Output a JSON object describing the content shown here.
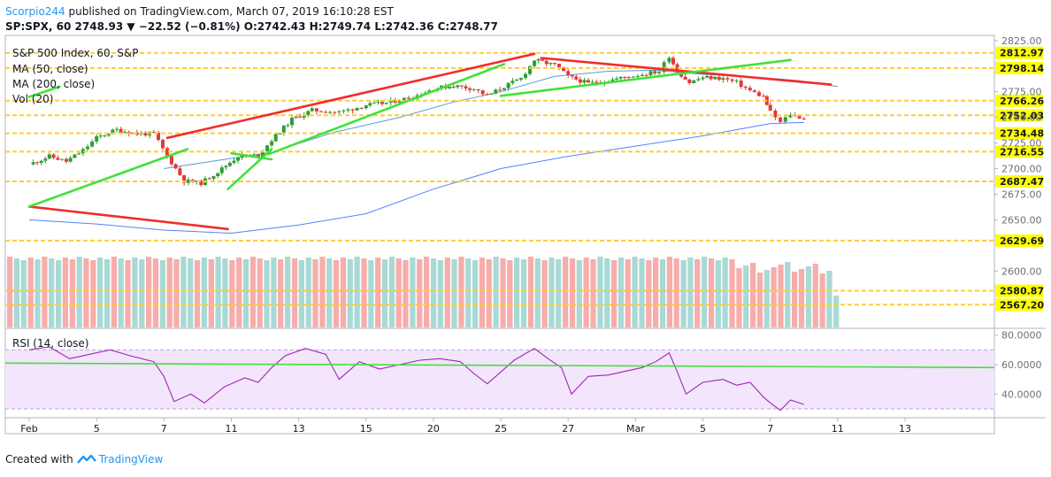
{
  "header": {
    "author": "Scorpio244",
    "published_text": " published on TradingView.com, March 07, 2019 16:10:28 EST",
    "symbol_line_prefix": "SP:SPX, 60  2748.93 ",
    "change_arrow": "▼",
    "symbol_line_suffix": " −22.52 (−0.81%) O:2742.43 H:2749.74 L:2742.36 C:2748.77"
  },
  "legend": {
    "title": "S&P 500 Index, 60, S&P",
    "ma50": "MA (50, close)",
    "ma200": "MA (200, close)",
    "vol": "Vol (20)",
    "rsi": "RSI (14, close)"
  },
  "footer": {
    "created_with": "Created with",
    "brand": "TradingView"
  },
  "colors": {
    "bull": "#26a69a",
    "bear": "#ef5350",
    "trend_red": "#f02d2d",
    "trend_green": "#43e13a",
    "level_line": "#ffcc33",
    "level_label_bg": "#ffff00",
    "ma50": "#5b9bd5",
    "ma200": "#2962ff",
    "rsi_line": "#9c27b0",
    "rsi_band": "#f3e5fb"
  },
  "chart_data": {
    "type": "candlestick",
    "instrument": "SP:SPX",
    "interval": "60",
    "price_axis": {
      "ylim": [
        2545,
        2830
      ],
      "ticks": [
        "2825.00",
        "2775.00",
        "2750.00",
        "2725.00",
        "2700.00",
        "2675.00",
        "2650.00",
        "2600.00"
      ],
      "tick_values": [
        2825,
        2775,
        2750,
        2725,
        2700,
        2675,
        2650,
        2600
      ]
    },
    "x_axis": {
      "ticks": [
        "Feb",
        "5",
        "7",
        "11",
        "13",
        "15",
        "20",
        "25",
        "27",
        "Mar",
        "5",
        "7",
        "11",
        "13"
      ],
      "tick_x_index": [
        0,
        1,
        2,
        3,
        4,
        5,
        6,
        7,
        8,
        9,
        10,
        11,
        12,
        13
      ]
    },
    "levels": [
      {
        "value": 2812.97,
        "label": "2812.97"
      },
      {
        "value": 2798.14,
        "label": "2798.14"
      },
      {
        "value": 2766.26,
        "label": "2766.26"
      },
      {
        "value": 2752.03,
        "label": "2752.03"
      },
      {
        "value": 2734.48,
        "label": "2734.48"
      },
      {
        "value": 2716.55,
        "label": "2716.55"
      },
      {
        "value": 2687.47,
        "label": "2687.47"
      },
      {
        "value": 2629.69,
        "label": "2629.69"
      },
      {
        "value": 2580.87,
        "label": "2580.87"
      },
      {
        "value": 2567.2,
        "label": "2567.20"
      }
    ],
    "close_path": [
      [
        0,
        2704
      ],
      [
        0.3,
        2712
      ],
      [
        0.55,
        2707
      ],
      [
        0.8,
        2718
      ],
      [
        1.0,
        2730
      ],
      [
        1.3,
        2738
      ],
      [
        1.6,
        2734
      ],
      [
        1.85,
        2734
      ],
      [
        2.05,
        2712
      ],
      [
        2.3,
        2688
      ],
      [
        2.55,
        2686
      ],
      [
        2.8,
        2697
      ],
      [
        3.1,
        2712
      ],
      [
        3.4,
        2713
      ],
      [
        3.6,
        2728
      ],
      [
        3.9,
        2748
      ],
      [
        4.2,
        2757
      ],
      [
        4.6,
        2755
      ],
      [
        5.0,
        2762
      ],
      [
        5.3,
        2764
      ],
      [
        5.7,
        2770
      ],
      [
        6.0,
        2778
      ],
      [
        6.3,
        2781
      ],
      [
        6.6,
        2778
      ],
      [
        6.8,
        2771
      ],
      [
        7.05,
        2780
      ],
      [
        7.3,
        2788
      ],
      [
        7.5,
        2806
      ],
      [
        7.8,
        2801
      ],
      [
        8.0,
        2790
      ],
      [
        8.3,
        2783
      ],
      [
        8.6,
        2786
      ],
      [
        8.9,
        2790
      ],
      [
        9.1,
        2792
      ],
      [
        9.35,
        2795
      ],
      [
        9.5,
        2810
      ],
      [
        9.62,
        2795
      ],
      [
        9.8,
        2784
      ],
      [
        10.0,
        2789
      ],
      [
        10.3,
        2788
      ],
      [
        10.5,
        2784
      ],
      [
        10.7,
        2776
      ],
      [
        10.9,
        2770
      ],
      [
        11.0,
        2755
      ],
      [
        11.15,
        2745
      ],
      [
        11.3,
        2753
      ],
      [
        11.5,
        2749
      ]
    ],
    "ma50_path": [
      [
        2.0,
        2700
      ],
      [
        2.8,
        2708
      ],
      [
        3.6,
        2716
      ],
      [
        4.5,
        2735
      ],
      [
        5.5,
        2750
      ],
      [
        6.3,
        2765
      ],
      [
        7.0,
        2775
      ],
      [
        7.8,
        2790
      ],
      [
        8.6,
        2795
      ],
      [
        9.3,
        2796
      ],
      [
        10.0,
        2792
      ],
      [
        10.6,
        2790
      ],
      [
        11.4,
        2786
      ],
      [
        12.0,
        2780
      ]
    ],
    "ma200_path": [
      [
        0,
        2650
      ],
      [
        1.0,
        2646
      ],
      [
        2.0,
        2640
      ],
      [
        3.0,
        2637
      ],
      [
        4.0,
        2645
      ],
      [
        5.0,
        2656
      ],
      [
        6.0,
        2680
      ],
      [
        7.0,
        2700
      ],
      [
        8.0,
        2712
      ],
      [
        9.0,
        2722
      ],
      [
        10.0,
        2732
      ],
      [
        11.0,
        2744
      ],
      [
        11.5,
        2745
      ]
    ],
    "trendlines": [
      {
        "color": "red",
        "from": [
          0,
          2663
        ],
        "to": [
          2.95,
          2641
        ]
      },
      {
        "color": "red",
        "from": [
          2.05,
          2730
        ],
        "to": [
          7.5,
          2812
        ]
      },
      {
        "color": "red",
        "from": [
          7.6,
          2808
        ],
        "to": [
          11.9,
          2782
        ]
      },
      {
        "color": "green",
        "from": [
          0,
          2770
        ],
        "to": [
          0.45,
          2780
        ]
      },
      {
        "color": "green",
        "from": [
          0,
          2663
        ],
        "to": [
          2.35,
          2719
        ]
      },
      {
        "color": "green",
        "from": [
          3.55,
          2714
        ],
        "to": [
          7.05,
          2802
        ]
      },
      {
        "color": "green",
        "from": [
          7.0,
          2771
        ],
        "to": [
          11.3,
          2806
        ]
      },
      {
        "color": "green",
        "from": [
          2.95,
          2680
        ],
        "to": [
          3.6,
          2719
        ]
      },
      {
        "color": "green",
        "from": [
          3.0,
          2715
        ],
        "to": [
          3.6,
          2709
        ]
      }
    ],
    "volume": {
      "count": 120,
      "bull_fraction_note": "",
      "last_bar_color": "bull"
    },
    "rsi": {
      "label": "RSI (14, close)",
      "ylim": [
        24,
        84
      ],
      "ticks": [
        "80.0000",
        "60.0000",
        "40.0000"
      ],
      "tick_values": [
        80,
        60,
        40
      ],
      "band": [
        30,
        70
      ],
      "trendline": {
        "from": [
          0,
          61
        ],
        "to": [
          14,
          58
        ]
      },
      "path": [
        [
          0,
          70
        ],
        [
          0.3,
          72
        ],
        [
          0.6,
          64
        ],
        [
          0.9,
          67
        ],
        [
          1.2,
          70
        ],
        [
          1.5,
          66
        ],
        [
          1.85,
          62
        ],
        [
          2.0,
          52
        ],
        [
          2.15,
          35
        ],
        [
          2.4,
          40
        ],
        [
          2.6,
          34
        ],
        [
          2.9,
          45
        ],
        [
          3.2,
          51
        ],
        [
          3.4,
          48
        ],
        [
          3.6,
          58
        ],
        [
          3.8,
          66
        ],
        [
          4.1,
          71
        ],
        [
          4.4,
          67
        ],
        [
          4.6,
          50
        ],
        [
          4.9,
          62
        ],
        [
          5.2,
          57
        ],
        [
          5.5,
          60
        ],
        [
          5.8,
          63
        ],
        [
          6.1,
          64
        ],
        [
          6.4,
          62
        ],
        [
          6.6,
          54
        ],
        [
          6.8,
          47
        ],
        [
          7.0,
          55
        ],
        [
          7.2,
          63
        ],
        [
          7.5,
          71
        ],
        [
          7.7,
          64
        ],
        [
          7.9,
          58
        ],
        [
          8.05,
          40
        ],
        [
          8.3,
          52
        ],
        [
          8.6,
          53
        ],
        [
          8.9,
          56
        ],
        [
          9.1,
          58
        ],
        [
          9.3,
          62
        ],
        [
          9.5,
          68
        ],
        [
          9.62,
          55
        ],
        [
          9.75,
          40
        ],
        [
          10.0,
          48
        ],
        [
          10.3,
          50
        ],
        [
          10.5,
          46
        ],
        [
          10.7,
          48
        ],
        [
          10.9,
          38
        ],
        [
          11.0,
          34
        ],
        [
          11.15,
          29
        ],
        [
          11.3,
          36
        ],
        [
          11.5,
          33
        ]
      ]
    }
  }
}
